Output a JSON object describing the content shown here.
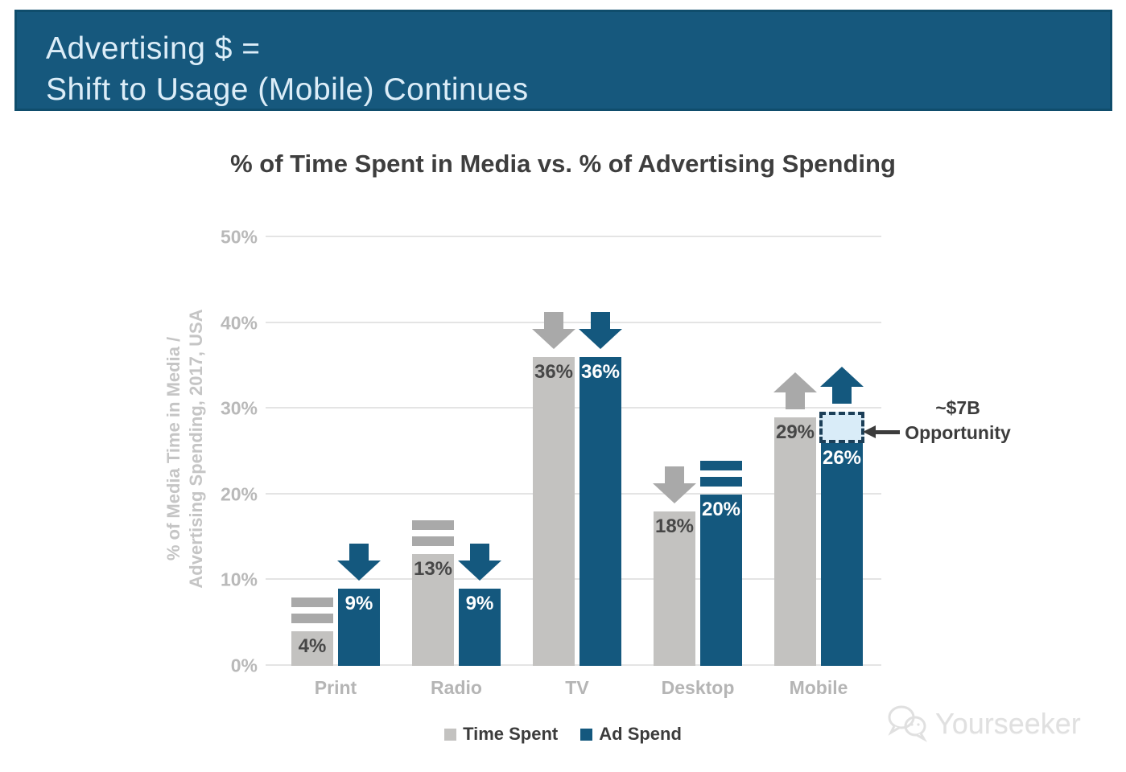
{
  "banner": {
    "line1": "Advertising $ =",
    "line2": "Shift to Usage (Mobile) Continues",
    "bg_color": "#16587d",
    "text_color": "#dcedf8"
  },
  "chart_data": {
    "type": "bar",
    "title": "% of Time Spent in Media vs. % of Advertising Spending",
    "ylabel_lines": [
      "% of Media Time in Media /",
      "Advertising Spending, 2017, USA"
    ],
    "categories": [
      "Print",
      "Radio",
      "TV",
      "Desktop",
      "Mobile"
    ],
    "series": [
      {
        "name": "Time Spent",
        "color": "#c3c2c0",
        "icon_color": "#a9a9a9",
        "label_color": "#474747",
        "values": [
          4,
          13,
          36,
          18,
          29
        ],
        "display_labels": [
          "4%",
          "13%",
          "36%",
          "18%",
          "29%"
        ],
        "trends": [
          "flat",
          "flat",
          "down",
          "down",
          "up"
        ]
      },
      {
        "name": "Ad Spend",
        "color": "#14587e",
        "icon_color": "#14587e",
        "label_color": "#ffffff",
        "values": [
          9,
          9,
          36,
          20,
          26
        ],
        "display_labels": [
          "9%",
          "9%",
          "36%",
          "20%",
          "26%"
        ],
        "trends": [
          "down",
          "down",
          "down",
          "flat",
          "up"
        ]
      }
    ],
    "ylim": [
      0,
      50
    ],
    "y_ticks": [
      {
        "value": 0,
        "label": "0%"
      },
      {
        "value": 10,
        "label": "10%"
      },
      {
        "value": 20,
        "label": "20%"
      },
      {
        "value": 30,
        "label": "30%"
      },
      {
        "value": 40,
        "label": "40%"
      },
      {
        "value": 50,
        "label": "50%"
      }
    ],
    "grid": true,
    "legend_position": "bottom",
    "annotation": {
      "line1": "~$7B",
      "line2": "Opportunity",
      "category": "Mobile",
      "series": "Ad Spend",
      "gap_from": 26,
      "gap_to": 29.6,
      "box_fill": "#d9ecf8",
      "box_border": "#1c3f58"
    }
  },
  "legend": {
    "items": [
      {
        "label": "Time Spent",
        "color": "#c3c2c0"
      },
      {
        "label": "Ad Spend",
        "color": "#14587e"
      }
    ]
  },
  "icons": {
    "trend_down": "thick-down-arrow",
    "trend_up": "thick-up-arrow",
    "trend_flat": "equals-sign",
    "annotation_arrow": "left-arrow",
    "watermark_icon": "chat-bubbles"
  },
  "watermark": {
    "text": "Yourseeker"
  }
}
